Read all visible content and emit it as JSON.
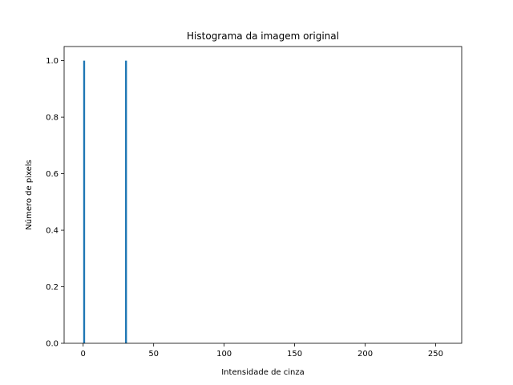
{
  "chart_data": {
    "type": "bar",
    "title": "Histograma da imagem original",
    "xlabel": "Intensidade de cinza",
    "ylabel": "Número de pixels",
    "xlim": [
      -13.5,
      268.5
    ],
    "ylim": [
      0,
      1.05
    ],
    "bin_width": 1.35,
    "bars": [
      {
        "x": 0.7,
        "value": 1.0
      },
      {
        "x": 30.4,
        "value": 1.0
      }
    ],
    "xticks": [
      {
        "value": 0,
        "label": "0"
      },
      {
        "value": 50,
        "label": "50"
      },
      {
        "value": 100,
        "label": "100"
      },
      {
        "value": 150,
        "label": "150"
      },
      {
        "value": 200,
        "label": "200"
      },
      {
        "value": 250,
        "label": "250"
      }
    ],
    "yticks": [
      {
        "value": 0.0,
        "label": "0.0"
      },
      {
        "value": 0.2,
        "label": "0.2"
      },
      {
        "value": 0.4,
        "label": "0.4"
      },
      {
        "value": 0.6,
        "label": "0.6"
      },
      {
        "value": 0.8,
        "label": "0.8"
      },
      {
        "value": 1.0,
        "label": "1.0"
      }
    ],
    "grid": false,
    "bar_color": "#1f77b4"
  }
}
